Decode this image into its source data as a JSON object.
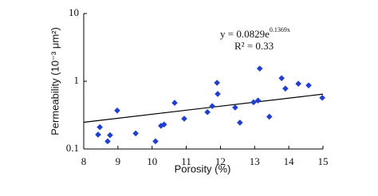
{
  "chart_data": {
    "type": "scatter",
    "x_label": "Porosity (%)",
    "y_label": "Permeability (10⁻³ μm²)",
    "series": [
      {
        "color": "#1f3fd0",
        "x": [
          8.42,
          8.47,
          8.7,
          8.77,
          8.98,
          9.52,
          10.1,
          10.26,
          10.35,
          10.66,
          10.94,
          11.62,
          11.76,
          11.9,
          11.92,
          12.43,
          12.57,
          12.97,
          13.1,
          13.15,
          13.43,
          13.79,
          13.9,
          14.28,
          14.58,
          14.98
        ],
        "values": [
          0.163,
          0.21,
          0.13,
          0.16,
          0.37,
          0.17,
          0.13,
          0.22,
          0.23,
          0.48,
          0.28,
          0.35,
          0.43,
          0.95,
          0.65,
          0.41,
          0.245,
          0.49,
          0.52,
          1.54,
          0.3,
          1.11,
          0.78,
          0.92,
          0.87,
          0.57
        ]
      }
    ],
    "trendline": {
      "color": "#000000",
      "x": [
        8,
        15
      ],
      "values": [
        0.248,
        0.646
      ]
    },
    "annotations": [
      {
        "text": "y = 0.0829e",
        "superscript": "0.1369x"
      },
      {
        "text": "R² = 0.33"
      }
    ],
    "xlim": [
      8,
      15
    ],
    "xticks": [
      8,
      9,
      10,
      11,
      12,
      13,
      14,
      15
    ],
    "ylim": [
      0.1,
      10
    ],
    "yticks": [
      0.1,
      1,
      10
    ],
    "log_y": true
  }
}
